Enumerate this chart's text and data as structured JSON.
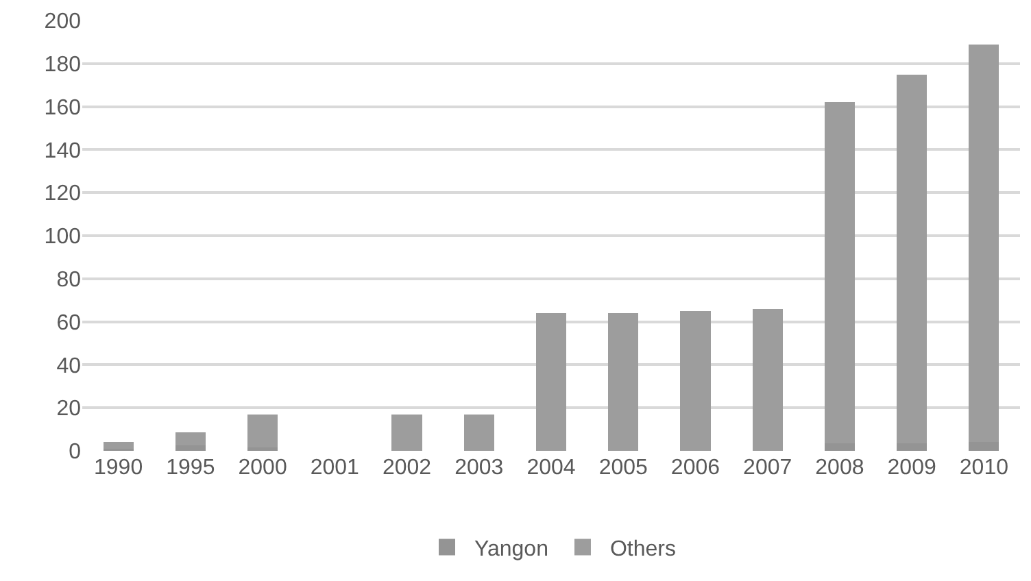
{
  "chart_data": {
    "type": "bar",
    "stacked": true,
    "categories": [
      "1990",
      "1995",
      "2000",
      "2001",
      "2002",
      "2003",
      "2004",
      "2005",
      "2006",
      "2007",
      "2008",
      "2009",
      "2010"
    ],
    "series": [
      {
        "name": "Yangon",
        "color": "#949494",
        "values": [
          1,
          2.5,
          1.5,
          0,
          0,
          0,
          0,
          0,
          0,
          0,
          3.5,
          3.5,
          4
        ]
      },
      {
        "name": "Others",
        "color": "#9d9d9d",
        "values": [
          3,
          6,
          15.5,
          0,
          17,
          17,
          64,
          64,
          65,
          66,
          158.5,
          171.5,
          185
        ]
      }
    ],
    "ylim": [
      0,
      200
    ],
    "yticks": [
      0,
      20,
      40,
      60,
      80,
      100,
      120,
      140,
      160,
      180,
      200
    ],
    "grid": "y",
    "legend": "bottom"
  }
}
